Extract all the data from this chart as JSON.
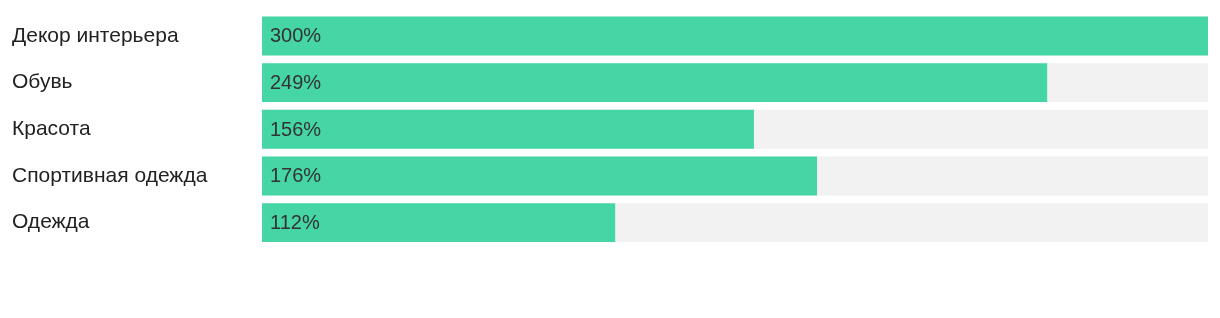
{
  "chart_data": {
    "type": "bar",
    "orientation": "horizontal",
    "categories": [
      "Декор интерьера",
      "Обувь",
      "Красота",
      "Спортивная одежда",
      "Одежда"
    ],
    "values": [
      300,
      249,
      156,
      176,
      112
    ],
    "value_labels": [
      "300%",
      "249%",
      "156%",
      "176%",
      "112%"
    ],
    "color": "#46d5a4",
    "xlim": [
      0,
      300
    ],
    "tick_labels": "y"
  }
}
